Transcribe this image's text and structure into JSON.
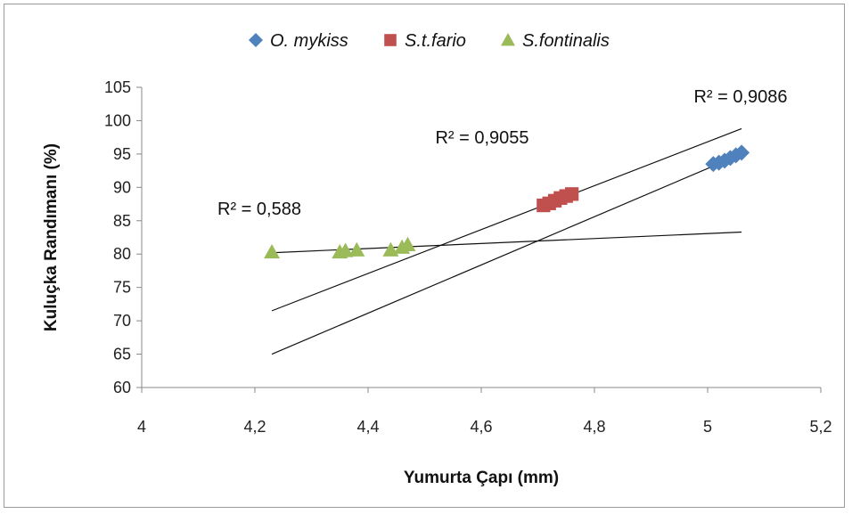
{
  "chart_data": {
    "type": "scatter",
    "xlabel": "Yumurta Çapı (mm)",
    "ylabel": "Kuluçka Randımanı (%)",
    "xlim": [
      4,
      5.2
    ],
    "ylim": [
      60,
      105
    ],
    "x_ticks": [
      "4",
      "4,2",
      "4,4",
      "4,6",
      "4,8",
      "5",
      "5,2"
    ],
    "y_ticks": [
      "60",
      "65",
      "70",
      "75",
      "80",
      "85",
      "90",
      "95",
      "100",
      "105"
    ],
    "legend_position": "top",
    "grid": false,
    "series": [
      {
        "name": "O. mykiss",
        "marker": "diamond",
        "color": "#4F81BD",
        "points": [
          [
            5.01,
            93.5
          ],
          [
            5.02,
            93.7
          ],
          [
            5.03,
            94.0
          ],
          [
            5.04,
            94.4
          ],
          [
            5.05,
            94.8
          ],
          [
            5.06,
            95.2
          ]
        ],
        "trendline": {
          "x": [
            4.23,
            5.06
          ],
          "y": [
            65.0,
            95.0
          ]
        },
        "r2_label": "R² = 0,9086"
      },
      {
        "name": "S.t.fario",
        "marker": "square",
        "color": "#C0504D",
        "points": [
          [
            4.71,
            87.3
          ],
          [
            4.72,
            87.6
          ],
          [
            4.73,
            88.0
          ],
          [
            4.74,
            88.4
          ],
          [
            4.75,
            88.7
          ],
          [
            4.76,
            89.0
          ]
        ],
        "trendline": {
          "x": [
            4.23,
            5.06
          ],
          "y": [
            71.5,
            98.8
          ]
        },
        "r2_label": "R² = 0,9055"
      },
      {
        "name": "S.fontinalis",
        "marker": "triangle",
        "color": "#9BBB59",
        "points": [
          [
            4.23,
            80.3
          ],
          [
            4.35,
            80.3
          ],
          [
            4.36,
            80.5
          ],
          [
            4.38,
            80.6
          ],
          [
            4.44,
            80.6
          ],
          [
            4.46,
            81.0
          ],
          [
            4.47,
            81.4
          ]
        ],
        "trendline": {
          "x": [
            4.23,
            5.06
          ],
          "y": [
            80.2,
            83.3
          ]
        },
        "r2_label": "R² = 0,588"
      }
    ]
  }
}
